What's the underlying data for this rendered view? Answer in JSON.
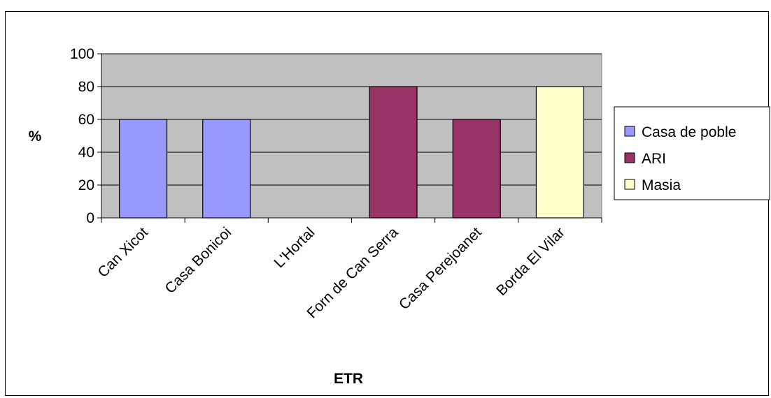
{
  "chart_data": {
    "type": "bar",
    "categories": [
      "Can Xicot",
      "Casa Bonicoi",
      "L'Hortal",
      "Forn de Can Serra",
      "Casa Perejoanet",
      "Borda El Vilar"
    ],
    "series": [
      {
        "name": "Casa de poble",
        "color": "#9999ff",
        "values": [
          60,
          60,
          0,
          0,
          0,
          0
        ]
      },
      {
        "name": "ARI",
        "color": "#993366",
        "values": [
          0,
          0,
          0,
          80,
          60,
          0
        ]
      },
      {
        "name": "Masia",
        "color": "#ffffcc",
        "values": [
          0,
          0,
          0,
          0,
          0,
          80
        ]
      }
    ],
    "xlabel": "ETR",
    "ylabel": "%",
    "ylim": [
      0,
      100
    ],
    "yticks": [
      "0",
      "20",
      "40",
      "60",
      "80",
      "100"
    ],
    "grid": true,
    "plot_background": "#c0c0c0",
    "legend_position": "right"
  }
}
